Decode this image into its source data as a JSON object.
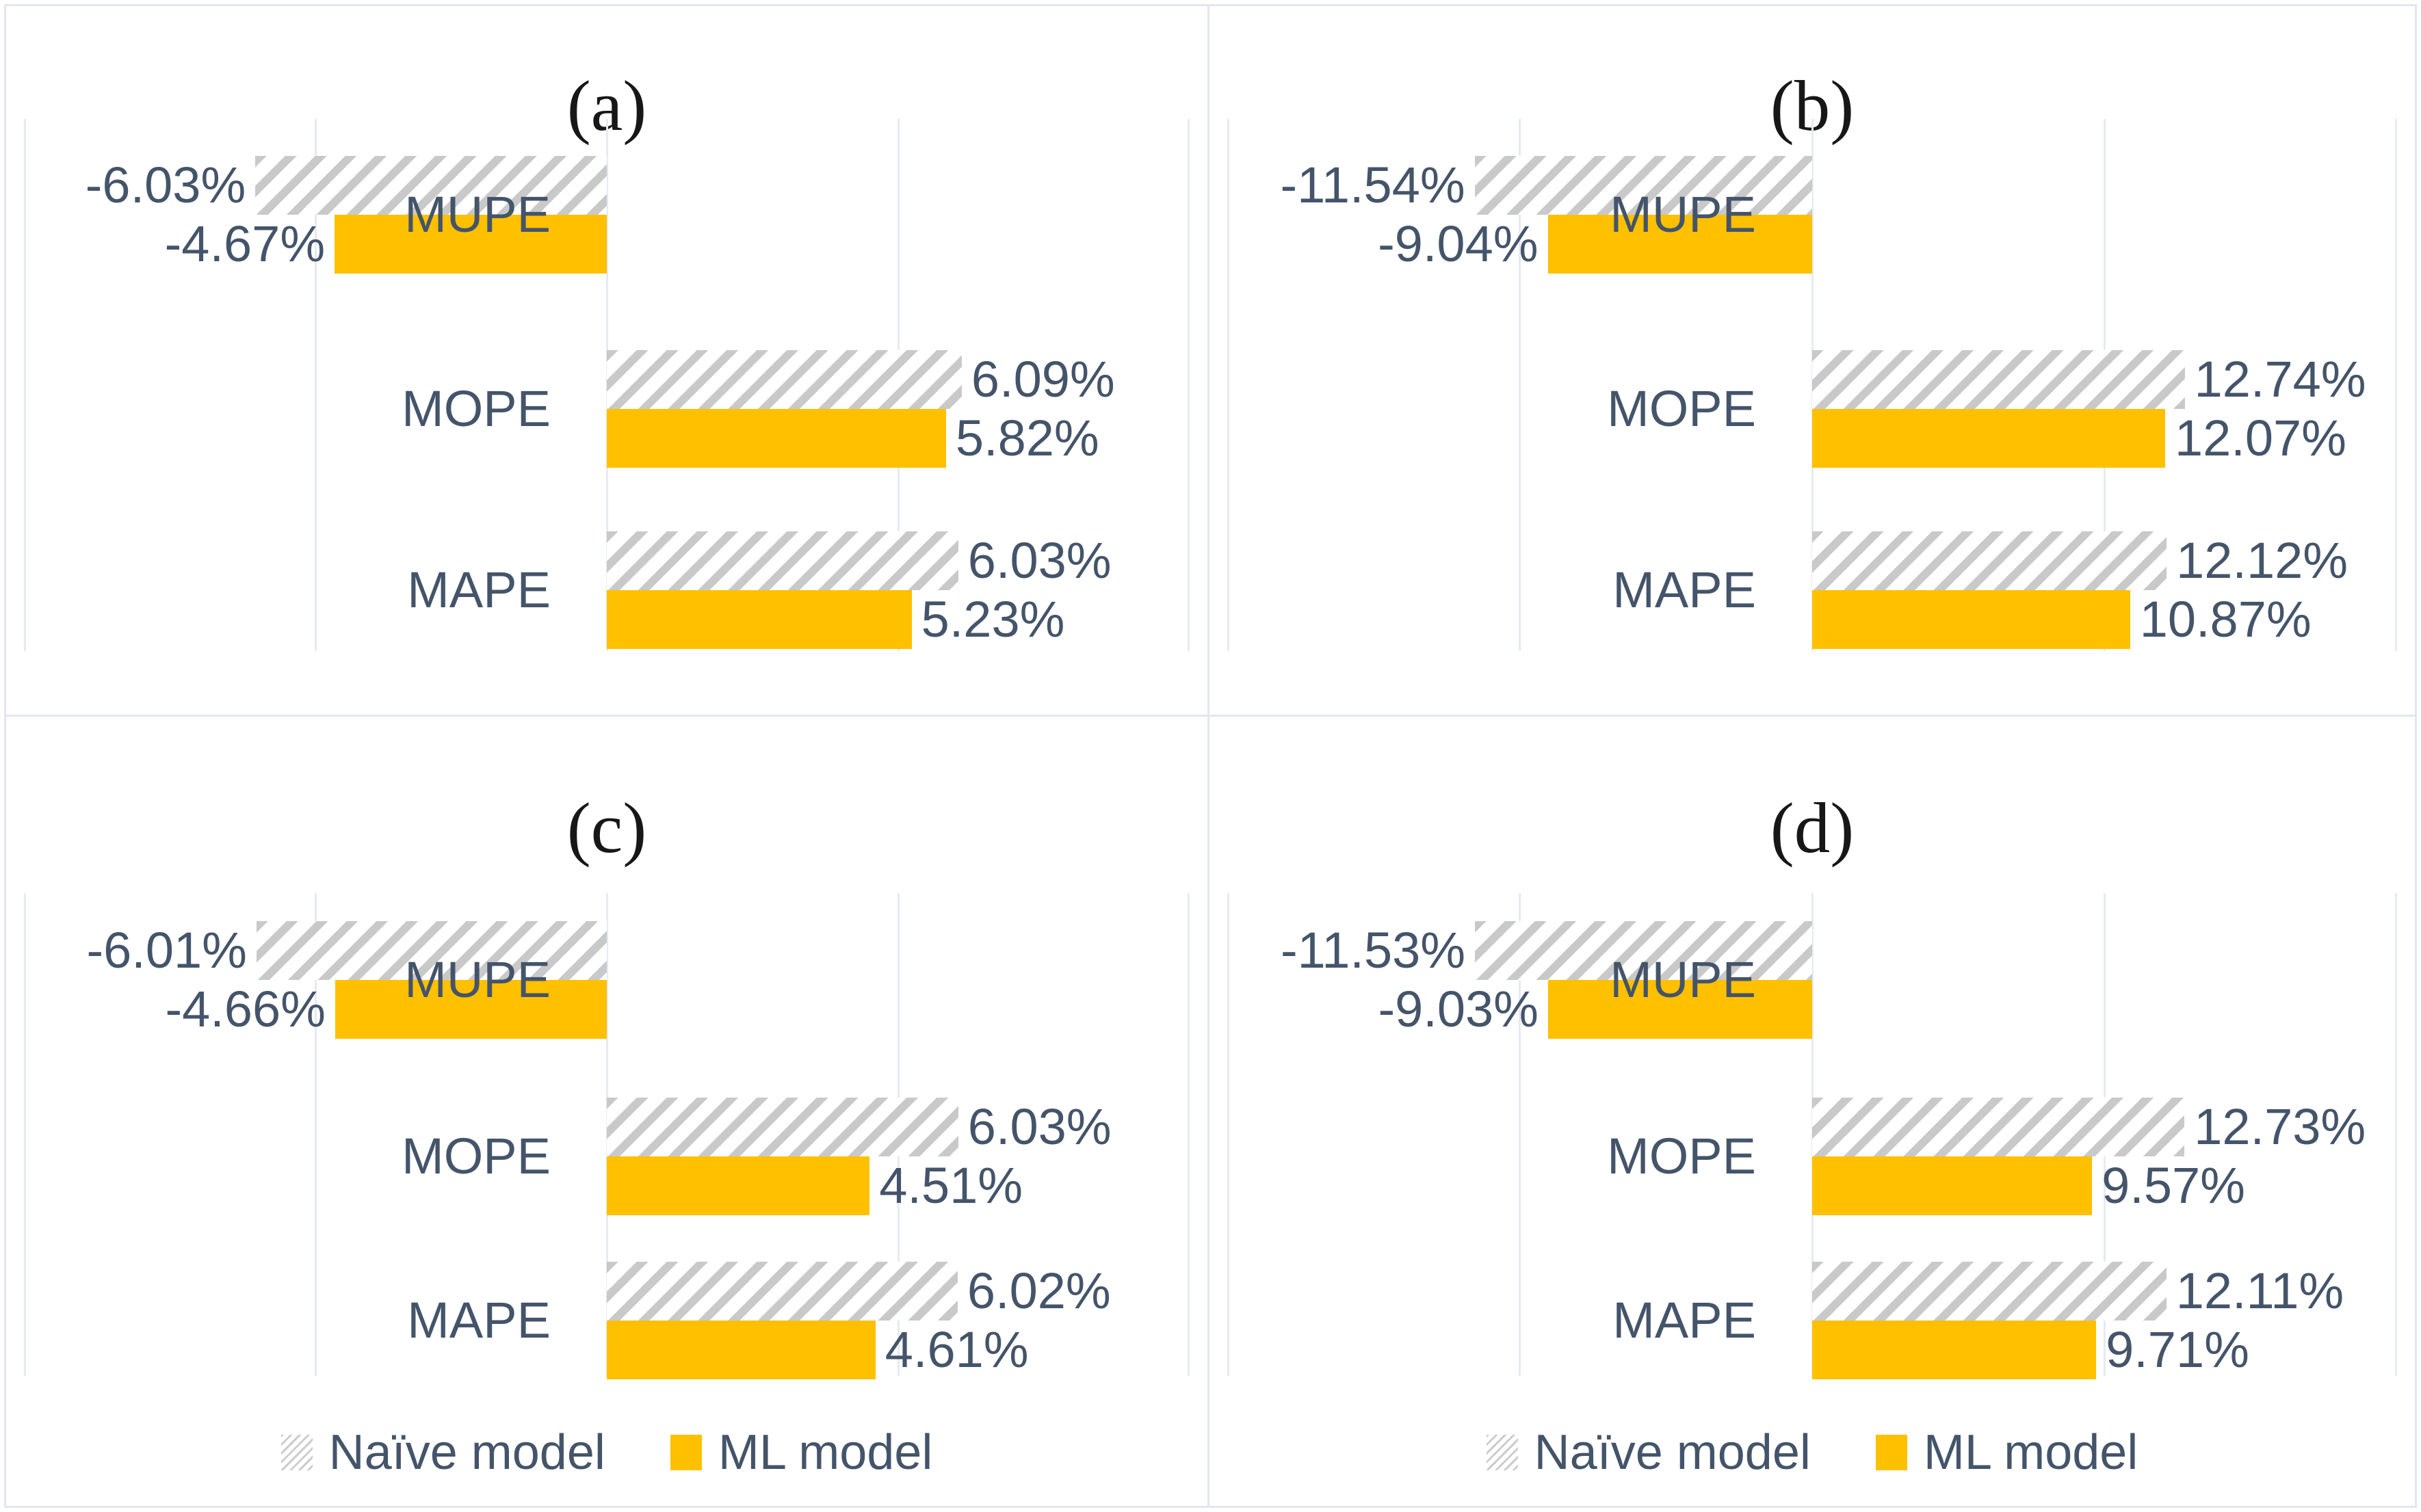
{
  "figure": {
    "description": "2x2 grid of horizontal grouped bar charts comparing Naive and ML model percentage errors",
    "colors": {
      "ml_bar": "#FFC000",
      "naive_bar_stripe": "#C9C9C9",
      "label_text": "#44546A",
      "gridline": "#E6EAF1",
      "panel_border": "#E2E7EE",
      "title_text": "#171717"
    },
    "legend": {
      "naive_label": "Naïve model",
      "ml_label": "ML model"
    }
  },
  "chart_data": [
    {
      "panel": "a",
      "title": "(a)",
      "type": "bar",
      "orientation": "horizontal",
      "categories": [
        "MUPE",
        "MOPE",
        "MAPE"
      ],
      "series": [
        {
          "name": "Naïve model",
          "values": [
            -6.03,
            6.09,
            6.03
          ],
          "labels": [
            "-6.03%",
            "6.09%",
            "6.03%"
          ]
        },
        {
          "name": "ML model",
          "values": [
            -4.67,
            5.82,
            5.23
          ],
          "labels": [
            "-4.67%",
            "5.82%",
            "5.23%"
          ]
        }
      ],
      "axis": {
        "min": -10.3,
        "max": 10.3,
        "grid_step": 5,
        "tick_labels_visible": false,
        "grid_on": true
      },
      "legend_visible": false,
      "legend_position": "none"
    },
    {
      "panel": "b",
      "title": "(b)",
      "type": "bar",
      "orientation": "horizontal",
      "categories": [
        "MUPE",
        "MOPE",
        "MAPE"
      ],
      "series": [
        {
          "name": "Naïve model",
          "values": [
            -11.54,
            12.74,
            12.12
          ],
          "labels": [
            "-11.54%",
            "12.74%",
            "12.12%"
          ]
        },
        {
          "name": "ML model",
          "values": [
            -9.04,
            12.07,
            10.87
          ],
          "labels": [
            "-9.04%",
            "12.07%",
            "10.87%"
          ]
        }
      ],
      "axis": {
        "min": -20.6,
        "max": 20.6,
        "grid_step": 10,
        "tick_labels_visible": false,
        "grid_on": true
      },
      "legend_visible": false,
      "legend_position": "none"
    },
    {
      "panel": "c",
      "title": "(c)",
      "type": "bar",
      "orientation": "horizontal",
      "categories": [
        "MUPE",
        "MOPE",
        "MAPE"
      ],
      "series": [
        {
          "name": "Naïve model",
          "values": [
            -6.01,
            6.03,
            6.02
          ],
          "labels": [
            "-6.01%",
            "6.03%",
            "6.02%"
          ]
        },
        {
          "name": "ML model",
          "values": [
            -4.66,
            4.51,
            4.61
          ],
          "labels": [
            "-4.66%",
            "4.51%",
            "4.61%"
          ]
        }
      ],
      "axis": {
        "min": -10.3,
        "max": 10.3,
        "grid_step": 5,
        "tick_labels_visible": false,
        "grid_on": true
      },
      "legend_visible": true,
      "legend_position": "bottom"
    },
    {
      "panel": "d",
      "title": "(d)",
      "type": "bar",
      "orientation": "horizontal",
      "categories": [
        "MUPE",
        "MOPE",
        "MAPE"
      ],
      "series": [
        {
          "name": "Naïve model",
          "values": [
            -11.53,
            12.73,
            12.11
          ],
          "labels": [
            "-11.53%",
            "12.73%",
            "12.11%"
          ]
        },
        {
          "name": "ML model",
          "values": [
            -9.03,
            9.57,
            9.71
          ],
          "labels": [
            "-9.03%",
            "9.57%",
            "9.71%"
          ]
        }
      ],
      "axis": {
        "min": -20.6,
        "max": 20.6,
        "grid_step": 10,
        "tick_labels_visible": false,
        "grid_on": true
      },
      "legend_visible": true,
      "legend_position": "bottom"
    }
  ]
}
